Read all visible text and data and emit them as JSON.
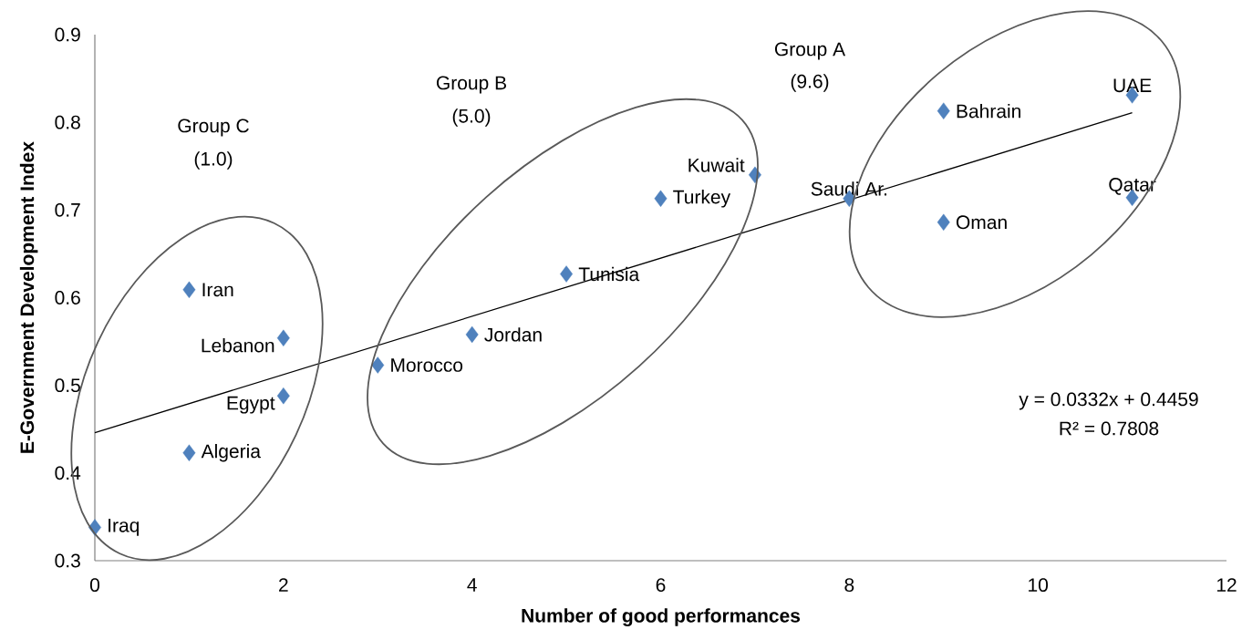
{
  "chart_data": {
    "type": "scatter",
    "xlabel": "Number of good performances",
    "ylabel": "E-Government Development Index",
    "xlim": [
      0,
      12
    ],
    "ylim": [
      0.3,
      0.9
    ],
    "xticks": [
      0,
      2,
      4,
      6,
      8,
      10,
      12
    ],
    "yticks": [
      0.3,
      0.4,
      0.5,
      0.6,
      0.7,
      0.8,
      0.9
    ],
    "grid": false,
    "series": [
      {
        "type": "scatter",
        "color": "#4f81bd",
        "marker": "diamond",
        "x": [
          0,
          1,
          1,
          2,
          2,
          3,
          4,
          5,
          6,
          7,
          8,
          9,
          9,
          11,
          11
        ],
        "values": [
          0.338,
          0.609,
          0.423,
          0.554,
          0.488,
          0.523,
          0.558,
          0.627,
          0.713,
          0.74,
          0.713,
          0.813,
          0.686,
          0.831,
          0.714
        ]
      },
      {
        "type": "line",
        "color": "#000000",
        "marker": "none",
        "x": [
          0,
          11
        ],
        "values": [
          0.446,
          0.811
        ]
      }
    ],
    "annotations": [
      {
        "text": "Iraq",
        "x": 0,
        "y": 0.338
      },
      {
        "text": "Iran",
        "x": 1,
        "y": 0.609
      },
      {
        "text": "Algeria",
        "x": 1,
        "y": 0.423
      },
      {
        "text": "Lebanon",
        "x": 2,
        "y": 0.554
      },
      {
        "text": "Egypt",
        "x": 2,
        "y": 0.488
      },
      {
        "text": "Morocco",
        "x": 3,
        "y": 0.523
      },
      {
        "text": "Jordan",
        "x": 4,
        "y": 0.558
      },
      {
        "text": "Tunisia",
        "x": 5,
        "y": 0.627
      },
      {
        "text": "Turkey",
        "x": 6,
        "y": 0.713
      },
      {
        "text": "Kuwait",
        "x": 7,
        "y": 0.74
      },
      {
        "text": "Saudi Ar.",
        "x": 8,
        "y": 0.713
      },
      {
        "text": "Bahrain",
        "x": 9,
        "y": 0.813
      },
      {
        "text": "Oman",
        "x": 9,
        "y": 0.686
      },
      {
        "text": "UAE",
        "x": 11,
        "y": 0.831
      },
      {
        "text": "Qatar",
        "x": 11,
        "y": 0.714
      },
      "Group C",
      "(1.0)",
      "Group B",
      "(5.0)",
      "Group A",
      "(9.6)",
      "y = 0.0332x + 0.4459",
      "R² = 0.7808"
    ]
  }
}
